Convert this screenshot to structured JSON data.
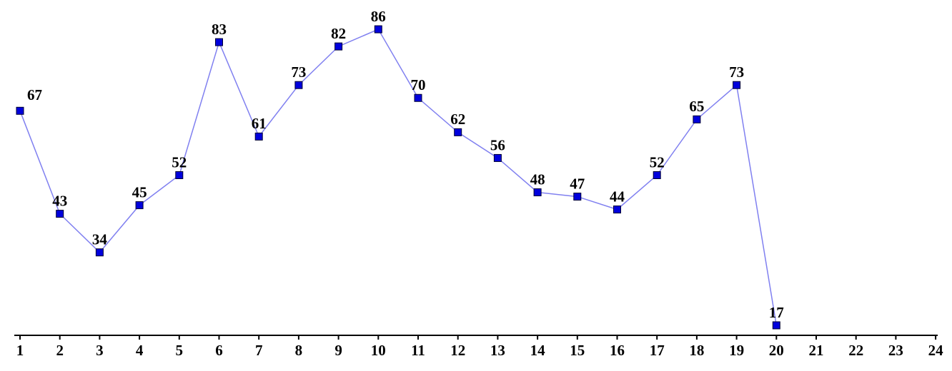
{
  "chart_data": {
    "type": "line",
    "categories": [
      "1",
      "2",
      "3",
      "4",
      "5",
      "6",
      "7",
      "8",
      "9",
      "10",
      "11",
      "12",
      "13",
      "14",
      "15",
      "16",
      "17",
      "18",
      "19",
      "20",
      "21",
      "22",
      "23",
      "24"
    ],
    "series": [
      {
        "color": "#8080f0",
        "marker_color": "#0000dd",
        "values": [
          67,
          43,
          34,
          45,
          52,
          83,
          61,
          73,
          82,
          86,
          70,
          62,
          56,
          48,
          47,
          44,
          52,
          65,
          73,
          17,
          null,
          null,
          null,
          null
        ]
      }
    ],
    "ylim": [
      15,
      90
    ]
  }
}
